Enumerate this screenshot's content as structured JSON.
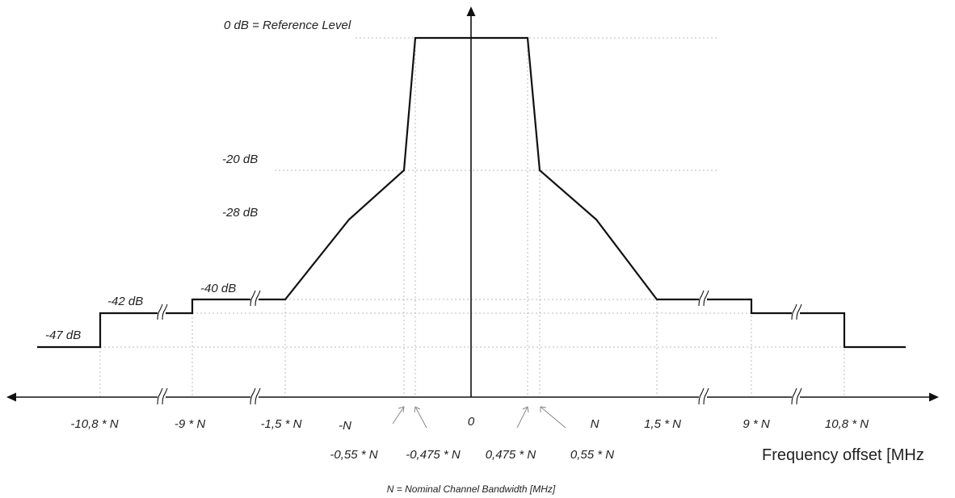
{
  "diagram": {
    "level_labels": {
      "ref": "0 dB = Reference Level",
      "m20": "-20 dB",
      "m28": "-28 dB",
      "m40": "-40 dB",
      "m42": "-42 dB",
      "m47": "-47 dB"
    },
    "tick_labels": {
      "neg_10_8": "-10,8 * N",
      "neg_9": "-9 * N",
      "neg_1_5": "-1,5 * N",
      "neg_n": "-N",
      "zero": "0",
      "pos_n": "N",
      "pos_1_5": "1,5 * N",
      "pos_9": "9 * N",
      "pos_10_8": "10,8 * N",
      "neg_0_55": "-0,55 * N",
      "neg_0_475": "-0,475 * N",
      "pos_0_475": "0,475 * N",
      "pos_0_55": "0,55 * N"
    },
    "axis_label": "Frequency offset [MHz",
    "footnote": "N = Nominal Channel Bandwidth [MHz]",
    "mask_points": [
      {
        "offset": "-inf",
        "level_db": -47
      },
      {
        "offset": "-10,8 * N",
        "level_db": -47
      },
      {
        "offset": "-10,8 * N",
        "level_db": -42
      },
      {
        "offset": "-9 * N",
        "level_db": -42
      },
      {
        "offset": "-9 * N",
        "level_db": -40
      },
      {
        "offset": "-1,5 * N",
        "level_db": -40
      },
      {
        "offset": "-N",
        "level_db": -28
      },
      {
        "offset": "-0,55 * N",
        "level_db": -20
      },
      {
        "offset": "-0,475 * N",
        "level_db": 0
      },
      {
        "offset": "0,475 * N",
        "level_db": 0
      },
      {
        "offset": "0,55 * N",
        "level_db": -20
      },
      {
        "offset": "N",
        "level_db": -28
      },
      {
        "offset": "1,5 * N",
        "level_db": -40
      },
      {
        "offset": "9 * N",
        "level_db": -40
      },
      {
        "offset": "9 * N",
        "level_db": -42
      },
      {
        "offset": "10,8 * N",
        "level_db": -42
      },
      {
        "offset": "10,8 * N",
        "level_db": -47
      },
      {
        "offset": "+inf",
        "level_db": -47
      }
    ]
  }
}
